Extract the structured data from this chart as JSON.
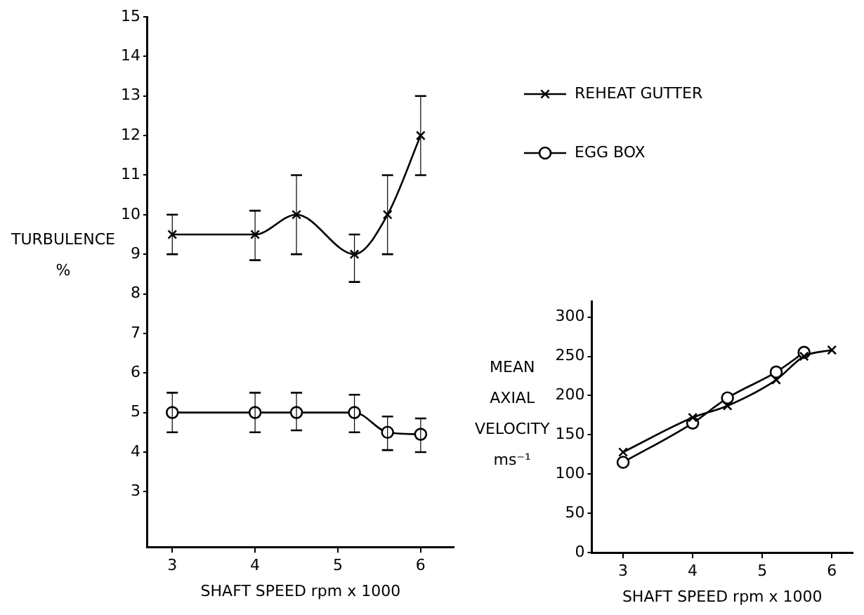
{
  "chart_data": [
    {
      "type": "line",
      "xlabel": "SHAFT SPEED rpm x 1000",
      "ylabel": "TURBULENCE %",
      "x": [
        3,
        4,
        4.5,
        5.2,
        5.6,
        6
      ],
      "xlim": [
        2.7,
        6.4
      ],
      "xticks": [
        3,
        4,
        5,
        6
      ],
      "ylim": [
        1.6,
        15
      ],
      "yticks": [
        3,
        4,
        5,
        6,
        7,
        8,
        9,
        10,
        11,
        12,
        13,
        14,
        15
      ],
      "legend": "top right",
      "series": [
        {
          "name": "REHEAT GUTTER",
          "color": "#000000",
          "marker": "cross",
          "values": [
            9.5,
            9.5,
            10,
            9,
            10,
            12
          ],
          "errors": [
            [
              9,
              10
            ],
            [
              8.85,
              10.1
            ],
            [
              9,
              11
            ],
            [
              8.3,
              9.5
            ],
            [
              9,
              11
            ],
            [
              11,
              13
            ]
          ]
        },
        {
          "name": "EGG BOX",
          "color": "#000000",
          "marker": "circle",
          "values": [
            5,
            5,
            5,
            5,
            4.5,
            4.45
          ],
          "errors": [
            [
              4.5,
              5.5
            ],
            [
              4.5,
              5.5
            ],
            [
              4.55,
              5.5
            ],
            [
              4.5,
              5.45
            ],
            [
              4.05,
              4.9
            ],
            [
              4,
              4.85
            ]
          ]
        }
      ]
    },
    {
      "type": "line",
      "xlabel": "SHAFT SPEED rpm x 1000",
      "ylabel": "MEAN AXIAL VELOCITY ms⁻¹",
      "xlim": [
        2.55,
        6.3
      ],
      "xticks": [
        3,
        4,
        5,
        6
      ],
      "ylim": [
        0,
        320
      ],
      "yticks": [
        0,
        50,
        100,
        150,
        200,
        250,
        300
      ],
      "series": [
        {
          "color": "#000000",
          "marker": "cross",
          "x": [
            3,
            4,
            4.5,
            5.2,
            5.6,
            6
          ],
          "values": [
            128,
            172,
            187,
            220,
            250,
            258
          ]
        },
        {
          "color": "#000000",
          "marker": "circle",
          "x": [
            3,
            4,
            4.5,
            5.2,
            5.6
          ],
          "values": [
            115,
            165,
            197,
            230,
            255
          ]
        }
      ]
    }
  ]
}
